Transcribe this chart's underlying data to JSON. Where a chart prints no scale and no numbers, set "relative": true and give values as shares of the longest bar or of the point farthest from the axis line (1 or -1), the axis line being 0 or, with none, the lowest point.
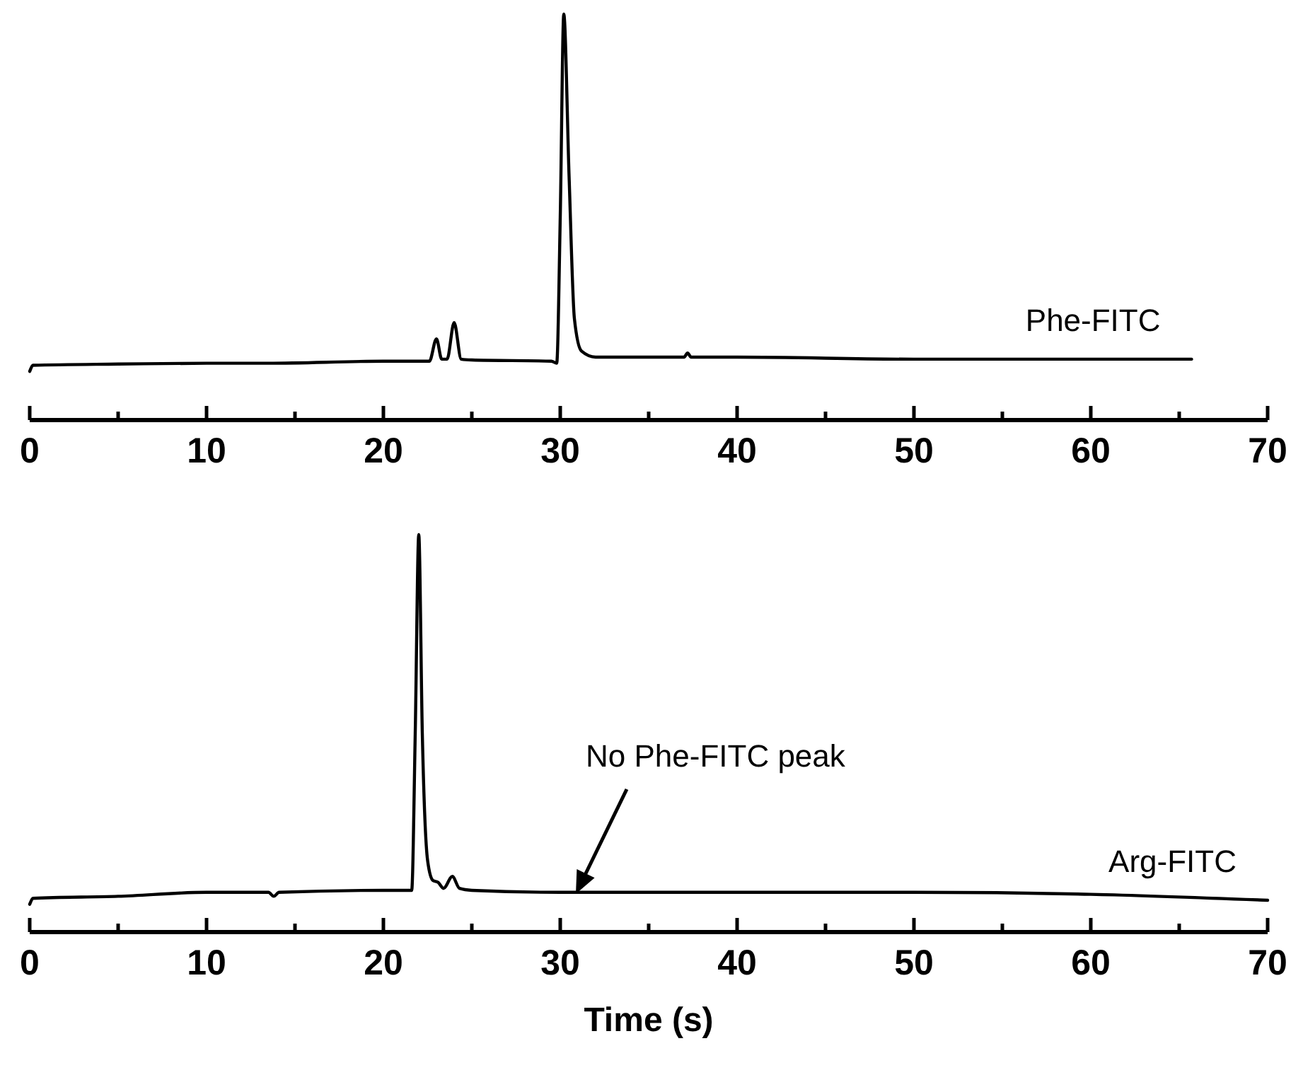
{
  "chart_data": [
    {
      "type": "line",
      "relative": true,
      "xlim": [
        0,
        70
      ],
      "xticks": [
        0,
        {
          "value": 5,
          "label": null
        },
        10,
        {
          "value": 15,
          "label": null
        },
        20,
        {
          "value": 25,
          "label": null
        },
        30,
        {
          "value": 35,
          "label": null
        },
        40,
        {
          "value": 45,
          "label": null
        },
        50,
        {
          "value": 55,
          "label": null
        },
        60,
        {
          "value": 65,
          "label": null
        },
        70
      ],
      "grid": false,
      "legend": false,
      "marker": "none",
      "line_style": "solid",
      "series": [
        {
          "name": "Phe-FITC",
          "color": "#000000",
          "x": [
            0,
            0.2,
            5,
            10,
            13.5,
            20,
            22.6,
            23,
            23.3,
            23.6,
            24,
            24.4,
            25,
            29.5,
            29.8,
            30,
            30.2,
            30.5,
            30.8,
            31.2,
            32,
            37,
            37.2,
            37.4,
            40,
            50,
            60,
            65.7
          ],
          "values": [
            0.12,
            0.135,
            0.138,
            0.14,
            0.14,
            0.145,
            0.145,
            0.2,
            0.15,
            0.15,
            0.24,
            0.15,
            0.148,
            0.145,
            0.14,
            0.5,
            1,
            0.6,
            0.25,
            0.17,
            0.155,
            0.155,
            0.165,
            0.155,
            0.155,
            0.15,
            0.15,
            0.15
          ]
        }
      ]
    },
    {
      "type": "line",
      "relative": true,
      "xlim": [
        0,
        70
      ],
      "xticks": [
        0,
        {
          "value": 5,
          "label": null
        },
        10,
        {
          "value": 15,
          "label": null
        },
        20,
        {
          "value": 25,
          "label": null
        },
        30,
        {
          "value": 35,
          "label": null
        },
        40,
        {
          "value": 45,
          "label": null
        },
        50,
        {
          "value": 55,
          "label": null
        },
        60,
        {
          "value": 65,
          "label": null
        },
        70
      ],
      "xlabel": "Time (s)",
      "grid": false,
      "legend": false,
      "marker": "none",
      "line_style": "solid",
      "annotations": [
        "No Phe-FITC peak"
      ],
      "series": [
        {
          "name": "Arg-FITC",
          "color": "#000000",
          "x": [
            0,
            0.2,
            5,
            10,
            13.5,
            13.8,
            14.1,
            20,
            21.6,
            21.8,
            22,
            22.2,
            22.5,
            22.8,
            23.1,
            23.4,
            23.9,
            24.3,
            25,
            30,
            40,
            50,
            60,
            70
          ],
          "values": [
            0.07,
            0.085,
            0.09,
            0.1,
            0.1,
            0.09,
            0.1,
            0.105,
            0.105,
            0.5,
            1,
            0.5,
            0.18,
            0.13,
            0.125,
            0.11,
            0.14,
            0.11,
            0.105,
            0.1,
            0.1,
            0.1,
            0.095,
            0.08
          ]
        }
      ]
    }
  ]
}
